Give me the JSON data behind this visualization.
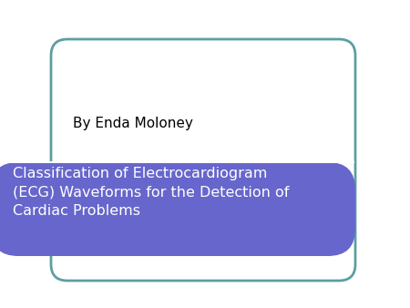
{
  "title_text": "Classification of Electrocardiogram\n(ECG) Waveforms for the Detection of\nCardiac Problems",
  "subtitle_text": "By Enda Moloney",
  "bg_color": "#ffffff",
  "outer_box_edgecolor": "#5a9fa0",
  "title_banner_color": "#6666cc",
  "title_text_color": "#ffffff",
  "subtitle_text_color": "#000000",
  "title_fontsize": 11.5,
  "subtitle_fontsize": 11,
  "fig_width": 4.5,
  "fig_height": 3.38,
  "fig_dpi": 100
}
